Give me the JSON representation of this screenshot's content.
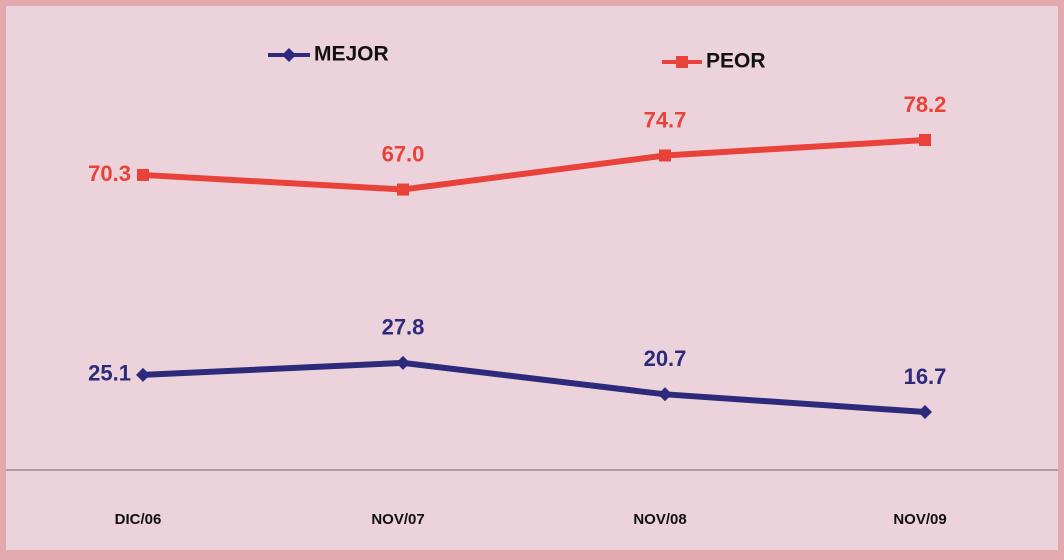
{
  "chart_data": {
    "type": "line",
    "categories": [
      "DIC/06",
      "NOV/07",
      "NOV/08",
      "NOV/09"
    ],
    "series": [
      {
        "name": "MEJOR",
        "color": "#2d2a7c",
        "values": [
          25.1,
          27.8,
          20.7,
          16.7
        ],
        "value_labels": [
          "25.1",
          "27.8",
          "20.7",
          "16.7"
        ]
      },
      {
        "name": "PEOR",
        "color": "#e8423a",
        "values": [
          70.3,
          67,
          74.7,
          78.2
        ],
        "value_labels": [
          "70.3",
          "67.0",
          "74.7",
          "78.2"
        ]
      }
    ]
  }
}
